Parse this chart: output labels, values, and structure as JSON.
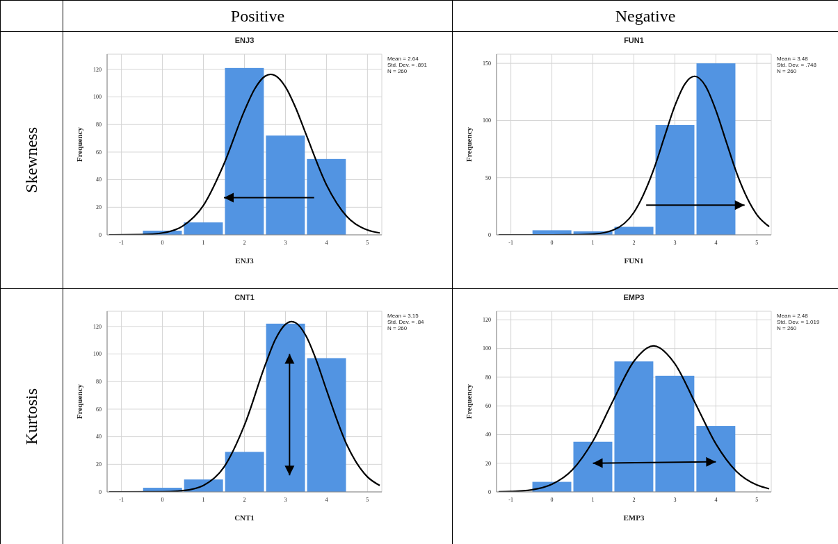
{
  "chart_data": [
    {
      "type": "histogram",
      "title": "ENJ3",
      "xlabel": "ENJ3",
      "ylabel": "Frequency",
      "annotations": [
        "Positive",
        "Skewness",
        "Mean = 2.64",
        "Std. Dev. = .891",
        "N = 260"
      ],
      "bins": [
        -0.5,
        0.5,
        1.5,
        2.5,
        3.5,
        4.5
      ],
      "values": [
        3,
        9,
        121,
        72,
        55
      ],
      "color": "#5294e2",
      "xlim": [
        -1.35,
        5.35
      ],
      "xticks": [
        -1,
        0,
        1,
        2,
        3,
        4,
        5
      ],
      "ylim": [
        0,
        131
      ],
      "yticks": [
        0,
        20,
        40,
        60,
        80,
        100,
        120
      ],
      "grid": true,
      "series": [
        {
          "type": "line",
          "color": "#000000",
          "x": [
            -1.3,
            -0.5,
            0,
            0.5,
            1,
            1.5,
            2,
            2.25,
            2.5,
            2.64,
            2.75,
            3,
            3.25,
            3.5,
            4,
            4.5,
            5,
            5.3
          ],
          "values": [
            0,
            0.2,
            1.4,
            6.5,
            21.4,
            51.4,
            90,
            105.8,
            115,
            116.4,
            115.5,
            107.3,
            92.1,
            73.1,
            36.3,
            13.2,
            3.5,
            1.4
          ]
        }
      ]
    },
    {
      "type": "histogram",
      "title": "FUN1",
      "xlabel": "FUN1",
      "ylabel": "Frequency",
      "annotations": [
        "Negative",
        "Mean = 3.48",
        "Std. Dev. = .748",
        "N = 260"
      ],
      "bins": [
        -0.5,
        0.5,
        1.5,
        2.5,
        3.5,
        4.5
      ],
      "values": [
        4,
        3,
        7,
        96,
        150
      ],
      "color": "#5294e2",
      "xlim": [
        -1.35,
        5.35
      ],
      "xticks": [
        -1,
        0,
        1,
        2,
        3,
        4,
        5
      ],
      "ylim": [
        0,
        158
      ],
      "yticks": [
        0,
        50,
        100,
        150
      ],
      "grid": true,
      "series": [
        {
          "type": "line",
          "color": "#000000",
          "x": [
            -1.3,
            0,
            0.5,
            1,
            1.5,
            2,
            2.5,
            2.75,
            3,
            3.25,
            3.48,
            3.75,
            4,
            4.25,
            4.5,
            5,
            5.3
          ],
          "values": [
            0,
            0,
            0.1,
            0.6,
            4.2,
            19.6,
            58.8,
            86.2,
            112.9,
            132.3,
            138.7,
            130,
            108.9,
            81.7,
            54.7,
            17.6,
            7.2
          ]
        }
      ]
    },
    {
      "type": "histogram",
      "title": "CNT1",
      "xlabel": "CNT1",
      "ylabel": "Frequency",
      "annotations": [
        "Kurtosis",
        "Mean = 3.15",
        "Std. Dev. = .84",
        "N = 260"
      ],
      "bins": [
        -0.5,
        0.5,
        1.5,
        2.5,
        3.5,
        4.5
      ],
      "values": [
        3,
        9,
        29,
        122,
        97
      ],
      "color": "#5294e2",
      "xlim": [
        -1.35,
        5.35
      ],
      "xticks": [
        -1,
        0,
        1,
        2,
        3,
        4,
        5
      ],
      "ylim": [
        0,
        131
      ],
      "yticks": [
        0,
        20,
        40,
        60,
        80,
        100,
        120
      ],
      "grid": true,
      "series": [
        {
          "type": "line",
          "color": "#000000",
          "x": [
            -1.3,
            0,
            0.5,
            1,
            1.5,
            2,
            2.5,
            2.75,
            3,
            3.15,
            3.25,
            3.5,
            3.75,
            4,
            4.5,
            5,
            5.3
          ],
          "values": [
            0,
            0.1,
            0.9,
            4.7,
            17.9,
            48.4,
            91.5,
            110.3,
            121.5,
            123.5,
            122.6,
            113.2,
            95.7,
            74,
            34,
            10.9,
            4.7
          ]
        }
      ]
    },
    {
      "type": "histogram",
      "title": "EMP3",
      "xlabel": "EMP3",
      "ylabel": "Frequency",
      "annotations": [
        "Mean = 2.48",
        "Std. Dev. = 1.019",
        "N = 260"
      ],
      "bins": [
        -0.5,
        0.5,
        1.5,
        2.5,
        3.5,
        4.5
      ],
      "values": [
        7,
        35,
        91,
        81,
        46
      ],
      "color": "#5294e2",
      "xlim": [
        -1.35,
        5.35
      ],
      "xticks": [
        -1,
        0,
        1,
        2,
        3,
        4,
        5
      ],
      "ylim": [
        0,
        126
      ],
      "yticks": [
        0,
        20,
        40,
        60,
        80,
        100,
        120
      ],
      "grid": true,
      "series": [
        {
          "type": "line",
          "color": "#000000",
          "x": [
            -1.3,
            -1,
            -0.5,
            0,
            0.5,
            1,
            1.5,
            2,
            2.48,
            3,
            3.5,
            4,
            4.5,
            5,
            5.3
          ],
          "values": [
            0.1,
            0.3,
            1.4,
            5.3,
            15.4,
            35.4,
            64.1,
            91.1,
            101.8,
            89.4,
            61.7,
            33.5,
            14.3,
            4.8,
            2.2
          ]
        }
      ]
    }
  ]
}
